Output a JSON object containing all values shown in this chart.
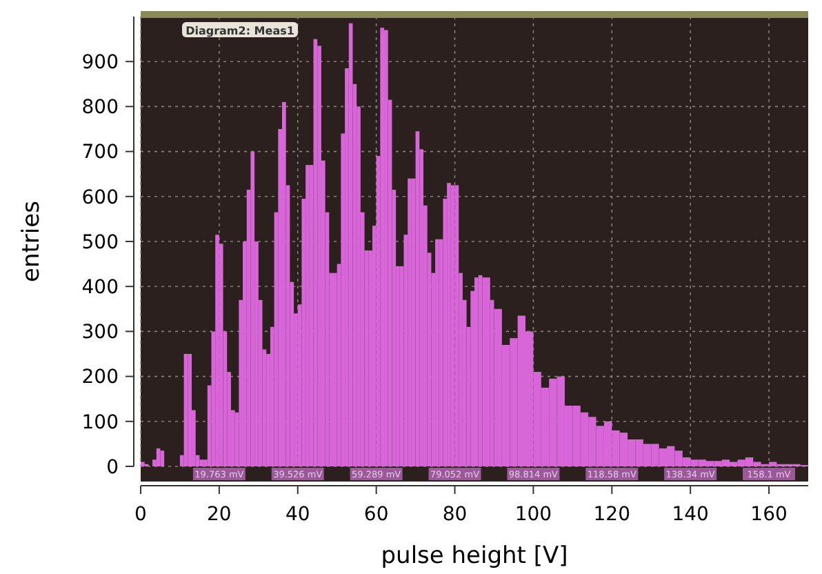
{
  "chart_data": {
    "type": "histogram",
    "xlabel": "pulse height [V]",
    "ylabel": "entries",
    "bins": [
      0,
      1,
      2,
      3,
      4,
      5,
      6,
      10,
      11,
      12,
      13,
      14,
      15,
      16,
      17,
      18,
      19,
      20,
      21,
      22,
      23,
      24,
      25,
      26,
      27,
      28,
      29,
      30,
      31,
      32,
      33,
      34,
      35,
      36,
      37,
      38,
      39,
      40,
      41,
      42,
      43,
      44,
      45,
      46,
      47,
      48,
      49,
      50,
      51,
      52,
      53,
      54,
      55,
      56,
      57,
      58,
      59,
      60,
      61,
      62,
      63,
      64,
      65,
      66,
      67,
      68,
      69,
      70,
      71,
      72,
      73,
      74,
      75,
      76,
      77,
      78,
      79,
      80,
      81,
      82,
      83,
      84,
      85,
      86,
      87,
      88,
      89,
      90,
      92,
      94,
      96,
      98,
      100,
      102,
      104,
      106,
      108,
      110,
      112,
      114,
      116,
      118,
      120,
      122,
      124,
      126,
      128,
      130,
      132,
      134,
      136,
      138,
      140,
      142,
      144,
      146,
      148,
      150,
      152,
      154,
      156,
      158,
      160,
      162,
      164,
      166,
      168,
      170
    ],
    "values": [
      10,
      5,
      0,
      15,
      40,
      35,
      0,
      25,
      250,
      250,
      125,
      25,
      15,
      15,
      180,
      300,
      515,
      495,
      300,
      210,
      125,
      120,
      370,
      500,
      615,
      700,
      500,
      370,
      260,
      250,
      310,
      565,
      750,
      810,
      625,
      410,
      340,
      360,
      595,
      670,
      670,
      950,
      935,
      680,
      565,
      430,
      430,
      450,
      740,
      885,
      985,
      850,
      800,
      565,
      480,
      480,
      535,
      690,
      975,
      970,
      815,
      615,
      445,
      445,
      515,
      640,
      640,
      745,
      705,
      580,
      475,
      430,
      505,
      505,
      595,
      630,
      625,
      625,
      430,
      370,
      310,
      390,
      420,
      425,
      420,
      420,
      370,
      350,
      270,
      285,
      335,
      300,
      210,
      175,
      195,
      200,
      135,
      135,
      120,
      110,
      90,
      100,
      80,
      75,
      60,
      60,
      50,
      50,
      40,
      45,
      35,
      20,
      15,
      15,
      12,
      12,
      15,
      10,
      15,
      20,
      10,
      5,
      10,
      5,
      5,
      5,
      3
    ],
    "color": "#d966d9",
    "xlim": [
      0,
      170
    ],
    "xticks": [
      0,
      20,
      40,
      60,
      80,
      100,
      120,
      140,
      160
    ],
    "ylim": [
      0,
      1000
    ],
    "yticks": [
      0,
      100,
      200,
      300,
      400,
      500,
      600,
      700,
      800,
      900
    ],
    "grid": true,
    "annotations": [
      "Diagram2: Meas1",
      "19.763 mV",
      "39.526 mV",
      "59.289 mV",
      "79.052 mV",
      "98.814 mV",
      "118.58 mV",
      "138.34 mV",
      "158.1 mV"
    ]
  }
}
